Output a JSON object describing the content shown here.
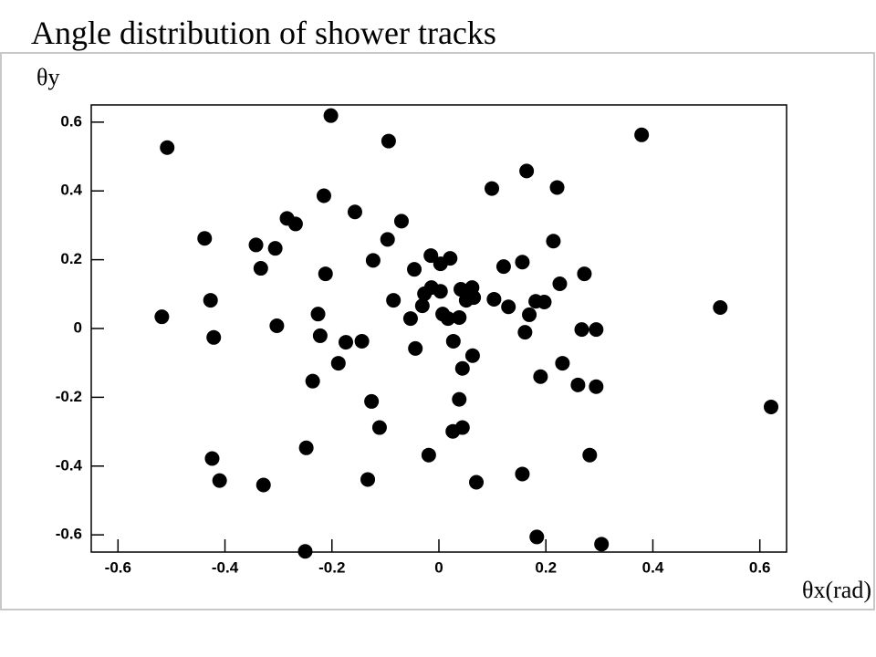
{
  "chart_data": {
    "type": "scatter",
    "title": "Angle distribution of shower tracks",
    "y_label": "θy",
    "x_label": "θx(rad)",
    "color": "#000000",
    "xlim": [
      -0.65,
      0.65
    ],
    "ylim": [
      -0.65,
      0.65
    ],
    "xticks": [
      -0.6,
      -0.4,
      -0.2,
      0,
      0.2,
      0.4,
      0.6
    ],
    "yticks": [
      -0.6,
      -0.4,
      -0.2,
      0,
      0.2,
      0.4,
      0.6
    ],
    "series": [
      {
        "name": null,
        "color": "#000000",
        "x": [
          -0.508,
          -0.202,
          -0.094,
          0.379,
          -0.438,
          -0.342,
          -0.306,
          -0.284,
          -0.268,
          -0.215,
          -0.157,
          -0.07,
          -0.096,
          -0.333,
          -0.212,
          -0.123,
          -0.427,
          -0.518,
          -0.421,
          -0.303,
          -0.226,
          -0.222,
          -0.174,
          -0.144,
          -0.188,
          -0.236,
          -0.126,
          -0.111,
          -0.248,
          -0.424,
          -0.41,
          -0.328,
          -0.133,
          -0.25,
          -0.015,
          0.003,
          0.021,
          -0.046,
          -0.027,
          -0.014,
          0.003,
          -0.031,
          -0.053,
          -0.085,
          0.007,
          0.017,
          0.038,
          0.041,
          0.055,
          0.062,
          0.065,
          0.051,
          0.027,
          -0.044,
          0.063,
          0.044,
          0.038,
          0.044,
          0.026,
          -0.019,
          0.07,
          0.099,
          0.164,
          0.221,
          0.121,
          0.156,
          0.103,
          0.13,
          0.169,
          0.181,
          0.197,
          0.214,
          0.226,
          0.272,
          0.161,
          0.267,
          0.294,
          0.231,
          0.19,
          0.26,
          0.294,
          0.282,
          0.156,
          0.183,
          0.304,
          0.526,
          0.621
        ],
        "values": [
          0.526,
          0.619,
          0.545,
          0.563,
          0.262,
          0.243,
          0.233,
          0.32,
          0.304,
          0.386,
          0.339,
          0.312,
          0.259,
          0.175,
          0.159,
          0.198,
          0.082,
          0.034,
          -0.026,
          0.008,
          0.042,
          -0.021,
          -0.04,
          -0.037,
          -0.101,
          -0.153,
          -0.212,
          -0.288,
          -0.347,
          -0.378,
          -0.442,
          -0.455,
          -0.439,
          -0.648,
          0.212,
          0.188,
          0.204,
          0.172,
          0.101,
          0.119,
          0.108,
          0.066,
          0.029,
          0.082,
          0.042,
          0.029,
          0.032,
          0.114,
          0.095,
          0.119,
          0.09,
          0.082,
          -0.037,
          -0.058,
          -0.079,
          -0.116,
          -0.206,
          -0.288,
          -0.299,
          -0.368,
          -0.447,
          0.407,
          0.458,
          0.41,
          0.18,
          0.193,
          0.085,
          0.063,
          0.04,
          0.079,
          0.077,
          0.254,
          0.13,
          0.159,
          -0.011,
          -0.003,
          -0.003,
          -0.101,
          -0.14,
          -0.164,
          -0.169,
          -0.368,
          -0.423,
          -0.606,
          -0.627,
          0.061,
          -0.228
        ]
      }
    ]
  }
}
